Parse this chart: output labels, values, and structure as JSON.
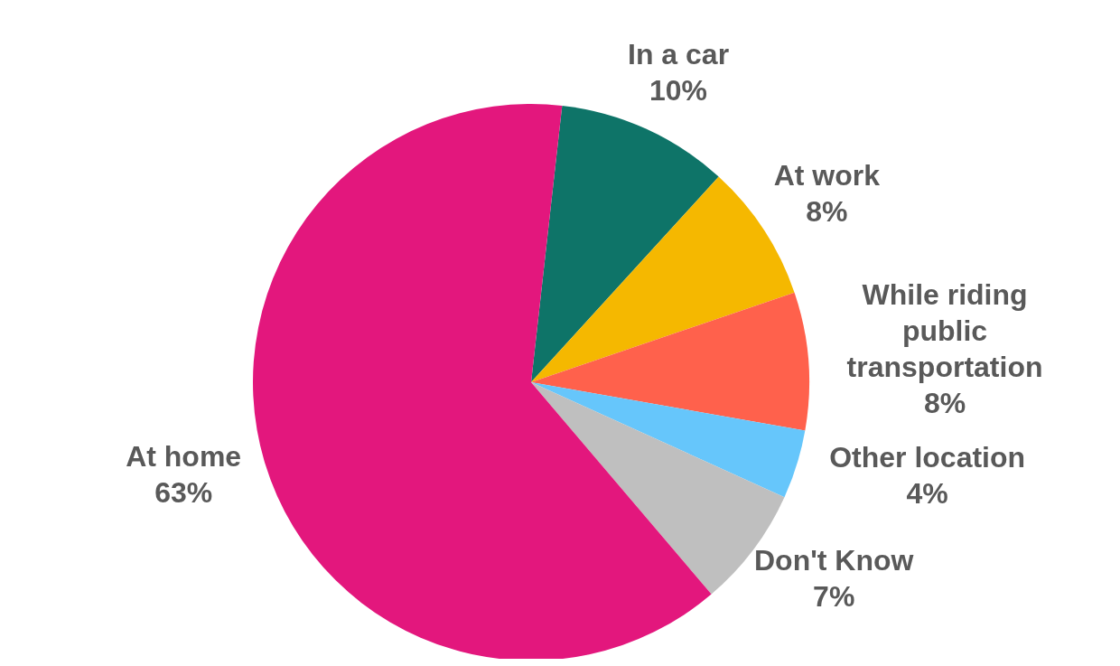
{
  "chart_data": {
    "type": "pie",
    "categories": [
      "In a car",
      "At work",
      "While riding public transportation",
      "Other location",
      "Don't Know",
      "At home"
    ],
    "values": [
      10,
      8,
      8,
      4,
      7,
      63
    ],
    "value_labels": [
      "10%",
      "8%",
      "8%",
      "4%",
      "7%",
      "63%"
    ],
    "colors": [
      "#0e7468",
      "#f5b800",
      "#ff614c",
      "#66c6fb",
      "#bfbfbf",
      "#e3177d"
    ],
    "legend": false
  }
}
